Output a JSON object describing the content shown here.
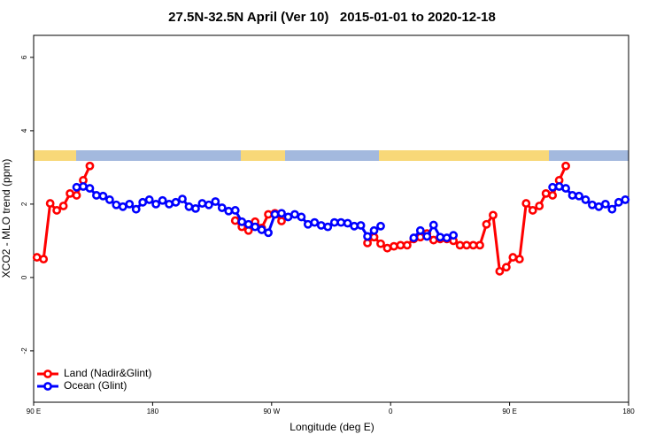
{
  "chart_data": {
    "type": "line",
    "title": "27.5N-32.5N April (Ver 10)   2015-01-01 to 2020-12-18",
    "x_label": "Longitude (deg E)",
    "y_label": "XCO2 - MLO trend (ppm)",
    "x": [
      92.5,
      97.5,
      102.5,
      107.5,
      112.5,
      117.5,
      122.5,
      127.5,
      132.5,
      137.5,
      142.5,
      147.5,
      152.5,
      157.5,
      162.5,
      167.5,
      172.5,
      177.5,
      182.5,
      187.5,
      192.5,
      197.5,
      202.5,
      207.5,
      212.5,
      217.5,
      222.5,
      227.5,
      232.5,
      237.5,
      242.5,
      247.5,
      252.5,
      257.5,
      262.5,
      267.5,
      272.5,
      277.5,
      282.5,
      287.5,
      292.5,
      297.5,
      302.5,
      307.5,
      312.5,
      317.5,
      322.5,
      327.5,
      332.5,
      337.5,
      342.5,
      347.5,
      352.5,
      357.5,
      362.5,
      367.5,
      372.5,
      377.5,
      382.5,
      387.5,
      392.5,
      397.5,
      402.5,
      407.5,
      412.5,
      417.5,
      422.5,
      427.5,
      432.5,
      437.5,
      442.5,
      447.5,
      452.5,
      457.5,
      462.5,
      467.5,
      472.5,
      477.5,
      482.5,
      487.5,
      492.5,
      497.5,
      502.5,
      507.5,
      512.5,
      517.5,
      522.5,
      527.5,
      532.5,
      537.5
    ],
    "series": [
      {
        "name": "Land (Nadir&Glint)",
        "color": "#ff0000",
        "values": [
          0.55,
          0.5,
          2.02,
          1.83,
          1.95,
          2.29,
          2.24,
          2.65,
          3.04,
          null,
          null,
          null,
          null,
          null,
          null,
          null,
          null,
          null,
          null,
          null,
          null,
          null,
          null,
          null,
          null,
          null,
          null,
          null,
          null,
          null,
          1.55,
          1.38,
          1.28,
          1.52,
          1.35,
          1.72,
          1.75,
          1.54,
          null,
          null,
          null,
          null,
          null,
          null,
          null,
          null,
          null,
          null,
          null,
          null,
          0.94,
          1.1,
          0.92,
          0.8,
          0.85,
          0.88,
          0.88,
          1.05,
          1.1,
          1.2,
          1.02,
          1.05,
          1.05,
          1.0,
          0.88,
          0.88,
          0.88,
          0.88,
          1.45,
          1.7,
          0.17,
          0.28,
          0.55,
          0.5,
          2.02,
          1.83,
          1.95,
          2.29,
          2.24,
          2.65,
          3.04,
          null,
          null,
          null,
          null,
          null,
          null,
          null,
          null,
          null
        ]
      },
      {
        "name": "Ocean (Glint)",
        "color": "#0000ff",
        "values": [
          null,
          null,
          null,
          null,
          null,
          null,
          2.46,
          2.48,
          2.43,
          2.24,
          2.22,
          2.12,
          1.98,
          1.93,
          2.0,
          1.86,
          2.05,
          2.12,
          2.0,
          2.1,
          2.0,
          2.05,
          2.14,
          1.93,
          1.88,
          2.02,
          1.98,
          2.07,
          1.9,
          1.81,
          1.83,
          1.52,
          1.45,
          1.38,
          1.3,
          1.22,
          1.72,
          1.75,
          1.65,
          1.72,
          1.65,
          1.45,
          1.5,
          1.42,
          1.38,
          1.5,
          1.5,
          1.48,
          1.4,
          1.42,
          1.12,
          1.28,
          1.4,
          null,
          null,
          null,
          null,
          1.08,
          1.28,
          1.12,
          1.43,
          1.1,
          1.08,
          1.15,
          null,
          null,
          null,
          null,
          null,
          null,
          null,
          null,
          null,
          null,
          null,
          null,
          null,
          null,
          2.46,
          2.48,
          2.43,
          2.24,
          2.22,
          2.12,
          1.98,
          1.93,
          2.0,
          1.86,
          2.05,
          2.12
        ]
      }
    ],
    "xlim": [
      90,
      540
    ],
    "xticks": [
      {
        "value": 90,
        "label": "90 E"
      },
      {
        "value": 180,
        "label": "180"
      },
      {
        "value": 270,
        "label": "90 W"
      },
      {
        "value": 360,
        "label": "0"
      },
      {
        "value": 450,
        "label": "90 E"
      },
      {
        "value": 540,
        "label": "180"
      }
    ],
    "ylim": [
      -3.4,
      6.6
    ],
    "yticks": [
      -2,
      0,
      2,
      4,
      6
    ],
    "legend": "bottom-left"
  }
}
